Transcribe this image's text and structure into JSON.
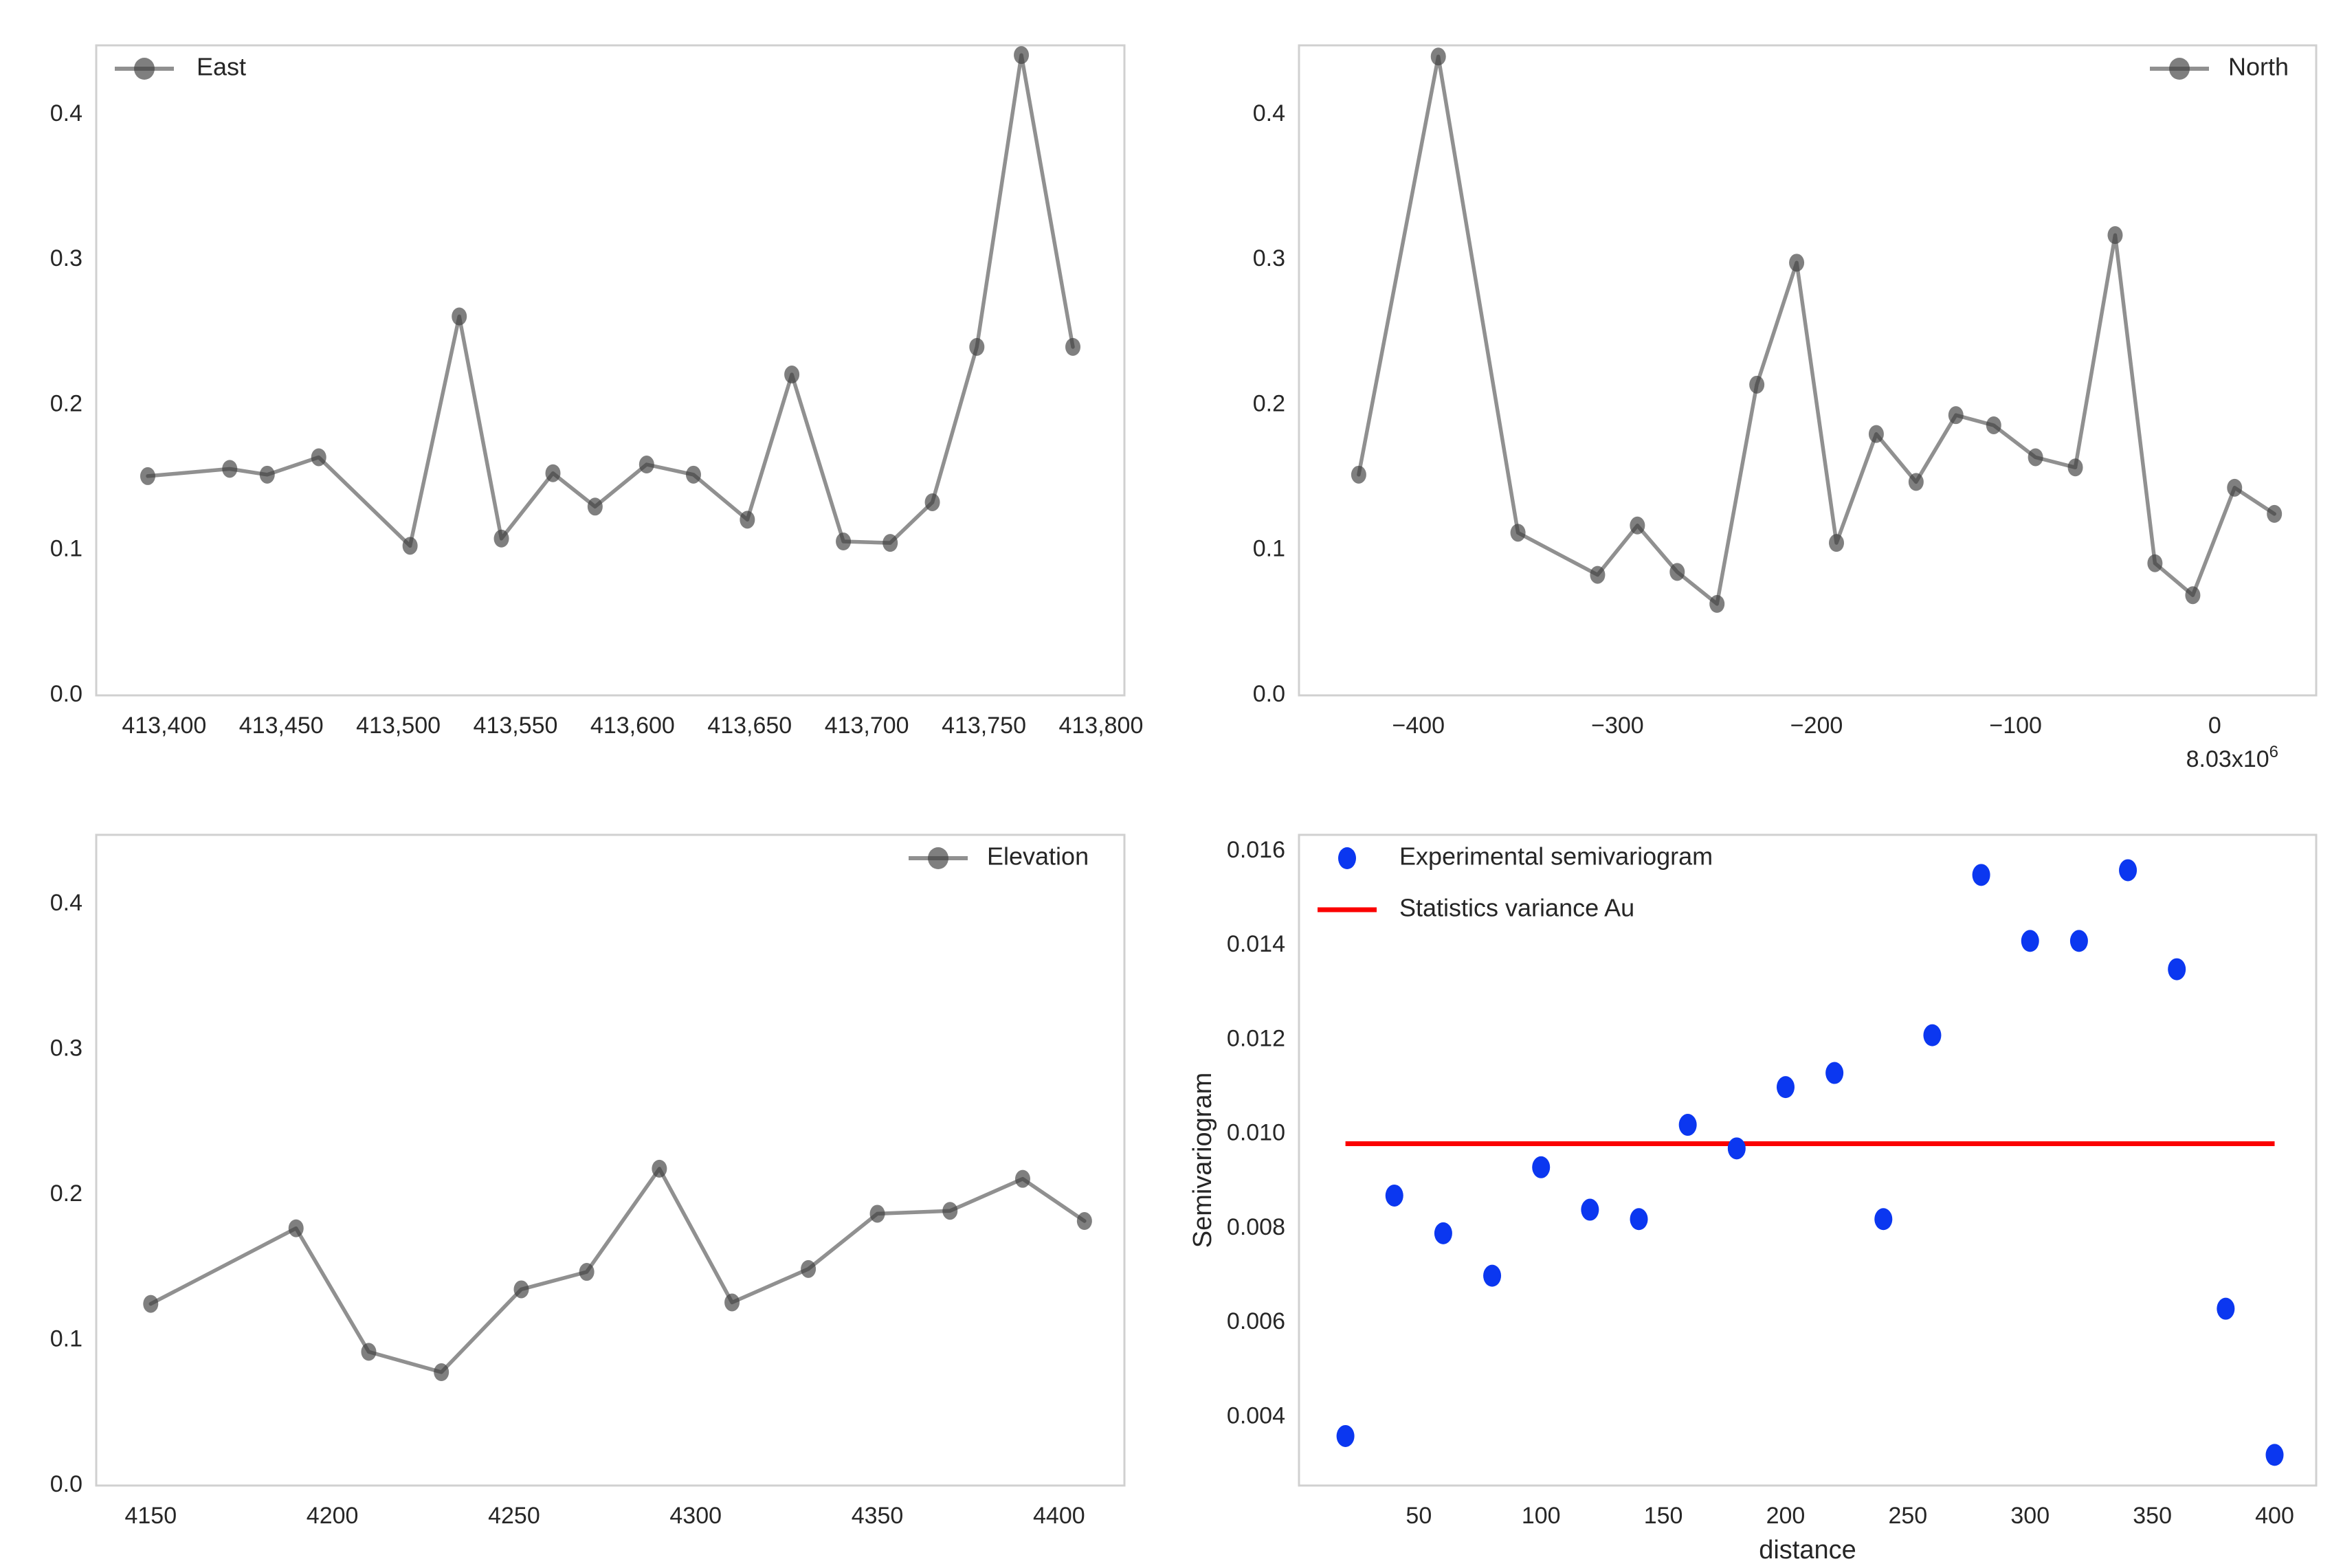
{
  "colors": {
    "profile_line": "#555555",
    "profile_marker": "#3d3d3d",
    "scatter_blue": "#0b37f0",
    "variance_red": "#fb0000",
    "plot_border": "#d0d0d0",
    "text": "#262626",
    "background": "#ffffff"
  },
  "chart_data": [
    {
      "id": "east-profile",
      "type": "line",
      "legend_position": "top-left",
      "legend": [
        {
          "icon": "line-marker",
          "label": "East"
        }
      ],
      "x": [
        413393,
        413428,
        413444,
        413466,
        413505,
        413526,
        413544,
        413566,
        413584,
        413606,
        413626,
        413649,
        413668,
        413690,
        413710,
        413728,
        413747,
        413766,
        413788
      ],
      "y": [
        0.151,
        0.156,
        0.152,
        0.164,
        0.103,
        0.261,
        0.108,
        0.153,
        0.13,
        0.159,
        0.152,
        0.121,
        0.221,
        0.106,
        0.105,
        0.133,
        0.24,
        0.441,
        0.24
      ],
      "xlim": [
        413371,
        413810
      ],
      "ylim": [
        0,
        0.4477
      ],
      "xticks": [
        {
          "v": 413400,
          "label": "413,400"
        },
        {
          "v": 413450,
          "label": "413,450"
        },
        {
          "v": 413500,
          "label": "413,500"
        },
        {
          "v": 413550,
          "label": "413,550"
        },
        {
          "v": 413600,
          "label": "413,600"
        },
        {
          "v": 413650,
          "label": "413,650"
        },
        {
          "v": 413700,
          "label": "413,700"
        },
        {
          "v": 413750,
          "label": "413,750"
        },
        {
          "v": 413800,
          "label": "413,800"
        }
      ],
      "yticks": [
        {
          "v": 0.0,
          "label": "0.0"
        },
        {
          "v": 0.1,
          "label": "0.1"
        },
        {
          "v": 0.2,
          "label": "0.2"
        },
        {
          "v": 0.3,
          "label": "0.3"
        },
        {
          "v": 0.4,
          "label": "0.4"
        }
      ]
    },
    {
      "id": "north-profile",
      "type": "line",
      "legend_position": "top-right",
      "legend": [
        {
          "icon": "line-marker",
          "label": "North"
        }
      ],
      "x": [
        -430,
        -390,
        -350,
        -310,
        -290,
        -270,
        -250,
        -230,
        -210,
        -190,
        -170,
        -150,
        -130,
        -111,
        -90,
        -70,
        -50,
        -30,
        -11,
        10,
        30
      ],
      "y": [
        0.152,
        0.44,
        0.112,
        0.083,
        0.117,
        0.085,
        0.063,
        0.214,
        0.298,
        0.105,
        0.18,
        0.147,
        0.193,
        0.186,
        0.164,
        0.157,
        0.317,
        0.091,
        0.069,
        0.143,
        0.125
      ],
      "xlim": [
        -460,
        51
      ],
      "ylim": [
        0,
        0.4477
      ],
      "xticks": [
        {
          "v": -400,
          "label": "−400"
        },
        {
          "v": -300,
          "label": "−300"
        },
        {
          "v": -200,
          "label": "−200"
        },
        {
          "v": -100,
          "label": "−100"
        },
        {
          "v": 0,
          "label": "0"
        }
      ],
      "yticks": [
        {
          "v": 0.0,
          "label": "0.0"
        },
        {
          "v": 0.1,
          "label": "0.1"
        },
        {
          "v": 0.2,
          "label": "0.2"
        },
        {
          "v": 0.3,
          "label": "0.3"
        },
        {
          "v": 0.4,
          "label": "0.4"
        }
      ],
      "axis_offset": {
        "base": "8.03x10",
        "exponent": "6"
      }
    },
    {
      "id": "elevation-profile",
      "type": "line",
      "legend_position": "top-right",
      "legend": [
        {
          "icon": "line-marker",
          "label": "Elevation"
        }
      ],
      "x": [
        4150,
        4190,
        4210,
        4230,
        4252,
        4270,
        4290,
        4310,
        4331,
        4350,
        4370,
        4390,
        4407
      ],
      "y": [
        0.125,
        0.177,
        0.092,
        0.078,
        0.135,
        0.147,
        0.218,
        0.126,
        0.149,
        0.187,
        0.189,
        0.211,
        0.182
      ],
      "xlim": [
        4135,
        4418
      ],
      "ylim": [
        0,
        0.4477
      ],
      "xticks": [
        {
          "v": 4150,
          "label": "4150"
        },
        {
          "v": 4200,
          "label": "4200"
        },
        {
          "v": 4250,
          "label": "4250"
        },
        {
          "v": 4300,
          "label": "4300"
        },
        {
          "v": 4350,
          "label": "4350"
        },
        {
          "v": 4400,
          "label": "4400"
        }
      ],
      "yticks": [
        {
          "v": 0.0,
          "label": "0.0"
        },
        {
          "v": 0.1,
          "label": "0.1"
        },
        {
          "v": 0.2,
          "label": "0.2"
        },
        {
          "v": 0.3,
          "label": "0.3"
        },
        {
          "v": 0.4,
          "label": "0.4"
        }
      ]
    },
    {
      "id": "experimental-semivariogram",
      "type": "scatter",
      "legend_position": "top-left",
      "legend": [
        {
          "icon": "marker",
          "label": "Experimental semivariogram"
        },
        {
          "icon": "line",
          "label": "Statistics variance Au"
        }
      ],
      "xlabel": "distance",
      "ylabel": "Semivariogram",
      "x": [
        20,
        40,
        60,
        80,
        100,
        120,
        140,
        160,
        180,
        200,
        220,
        240,
        260,
        280,
        300,
        320,
        340,
        360,
        380,
        400
      ],
      "y": [
        0.0036,
        0.0087,
        0.0079,
        0.007,
        0.0093,
        0.0084,
        0.0082,
        0.0102,
        0.0097,
        0.011,
        0.0113,
        0.0082,
        0.0121,
        0.0155,
        0.0141,
        0.0141,
        0.0156,
        0.0135,
        0.0063,
        0.0032
      ],
      "hline": {
        "value": 0.0098,
        "x0": 20,
        "x1": 400
      },
      "xlim": [
        1,
        417
      ],
      "ylim": [
        0.00255,
        0.01635
      ],
      "xticks": [
        {
          "v": 50,
          "label": "50"
        },
        {
          "v": 100,
          "label": "100"
        },
        {
          "v": 150,
          "label": "150"
        },
        {
          "v": 200,
          "label": "200"
        },
        {
          "v": 250,
          "label": "250"
        },
        {
          "v": 300,
          "label": "300"
        },
        {
          "v": 350,
          "label": "350"
        },
        {
          "v": 400,
          "label": "400"
        }
      ],
      "yticks": [
        {
          "v": 0.004,
          "label": "0.004"
        },
        {
          "v": 0.006,
          "label": "0.006"
        },
        {
          "v": 0.008,
          "label": "0.008"
        },
        {
          "v": 0.01,
          "label": "0.010"
        },
        {
          "v": 0.012,
          "label": "0.012"
        },
        {
          "v": 0.014,
          "label": "0.014"
        },
        {
          "v": 0.016,
          "label": "0.016"
        }
      ]
    }
  ]
}
